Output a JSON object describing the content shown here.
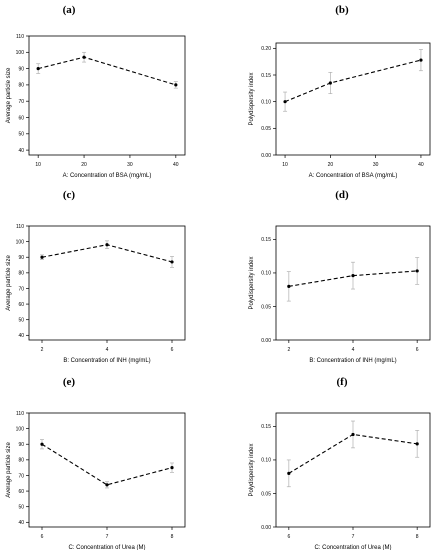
{
  "colors": {
    "axis": "#000000",
    "series": "#000000",
    "errorbar": "#b0b0b0"
  },
  "chart_data": [
    {
      "panel": "(a)",
      "type": "line",
      "xlabel": "A: Concentration of BSA (mg/mL)",
      "ylabel": "Average particle size",
      "xlim": [
        8,
        42
      ],
      "ylim": [
        37,
        110
      ],
      "xticks": [
        10,
        20,
        30,
        40
      ],
      "yticks": [
        40,
        50,
        60,
        70,
        80,
        90,
        100,
        110
      ],
      "ytick_labels": [
        "40",
        "50",
        "60",
        "70",
        "80",
        "90",
        "100",
        "110"
      ],
      "points": [
        {
          "x": 10,
          "y": 90,
          "err": 3
        },
        {
          "x": 20,
          "y": 97,
          "err": 3
        },
        {
          "x": 40,
          "y": 80,
          "err": 2
        }
      ]
    },
    {
      "panel": "(b)",
      "type": "line",
      "xlabel": "A: Concentration of BSA (mg/mL)",
      "ylabel": "Polydispersity index",
      "xlim": [
        8,
        42
      ],
      "ylim": [
        0,
        0.21
      ],
      "xticks": [
        10,
        20,
        30,
        40
      ],
      "yticks": [
        0,
        0.05,
        0.1,
        0.15,
        0.2
      ],
      "ytick_labels": [
        "0.00",
        "0.05",
        "0.10",
        "0.15",
        "0.20"
      ],
      "points": [
        {
          "x": 10,
          "y": 0.1,
          "err": 0.018
        },
        {
          "x": 20,
          "y": 0.135,
          "err": 0.02
        },
        {
          "x": 40,
          "y": 0.178,
          "err": 0.02
        }
      ]
    },
    {
      "panel": "(c)",
      "type": "line",
      "xlabel": "B: Concentration of INH (mg/mL)",
      "ylabel": "Average particle size",
      "xlim": [
        1.6,
        6.4
      ],
      "ylim": [
        37,
        110
      ],
      "xticks": [
        2,
        4,
        6
      ],
      "yticks": [
        40,
        50,
        60,
        70,
        80,
        90,
        100,
        110
      ],
      "ytick_labels": [
        "40",
        "50",
        "60",
        "70",
        "80",
        "90",
        "100",
        "110"
      ],
      "points": [
        {
          "x": 2,
          "y": 90,
          "err": 1.5
        },
        {
          "x": 4,
          "y": 98,
          "err": 2.5
        },
        {
          "x": 6,
          "y": 87,
          "err": 3.5
        }
      ]
    },
    {
      "panel": "(d)",
      "type": "line",
      "xlabel": "B: Concentration of INH (mg/mL)",
      "ylabel": "Polydispersity index",
      "xlim": [
        1.6,
        6.4
      ],
      "ylim": [
        0,
        0.17
      ],
      "xticks": [
        2,
        4,
        6
      ],
      "yticks": [
        0,
        0.05,
        0.1,
        0.15
      ],
      "ytick_labels": [
        "0.00",
        "0.05",
        "0.10",
        "0.15"
      ],
      "points": [
        {
          "x": 2,
          "y": 0.08,
          "err": 0.022
        },
        {
          "x": 4,
          "y": 0.096,
          "err": 0.02
        },
        {
          "x": 6,
          "y": 0.103,
          "err": 0.02
        }
      ]
    },
    {
      "panel": "(e)",
      "type": "line",
      "xlabel": "C: Concentration of Urea (M)",
      "ylabel": "Average particle size",
      "xlim": [
        5.8,
        8.2
      ],
      "ylim": [
        37,
        110
      ],
      "xticks": [
        6,
        7,
        8
      ],
      "yticks": [
        40,
        50,
        60,
        70,
        80,
        90,
        100,
        110
      ],
      "ytick_labels": [
        "40",
        "50",
        "60",
        "70",
        "80",
        "90",
        "100",
        "110"
      ],
      "points": [
        {
          "x": 6,
          "y": 90,
          "err": 3
        },
        {
          "x": 7,
          "y": 64,
          "err": 2
        },
        {
          "x": 8,
          "y": 75,
          "err": 3
        }
      ]
    },
    {
      "panel": "(f)",
      "type": "line",
      "xlabel": "C: Concentration of  Urea (M)",
      "ylabel": "Polydispersity index",
      "xlim": [
        5.8,
        8.2
      ],
      "ylim": [
        0,
        0.17
      ],
      "xticks": [
        6,
        7,
        8
      ],
      "yticks": [
        0,
        0.05,
        0.1,
        0.15
      ],
      "ytick_labels": [
        "0.00",
        "0.05",
        "0.10",
        "0.15"
      ],
      "points": [
        {
          "x": 6,
          "y": 0.08,
          "err": 0.02
        },
        {
          "x": 7,
          "y": 0.138,
          "err": 0.02
        },
        {
          "x": 8,
          "y": 0.124,
          "err": 0.02
        }
      ]
    }
  ]
}
